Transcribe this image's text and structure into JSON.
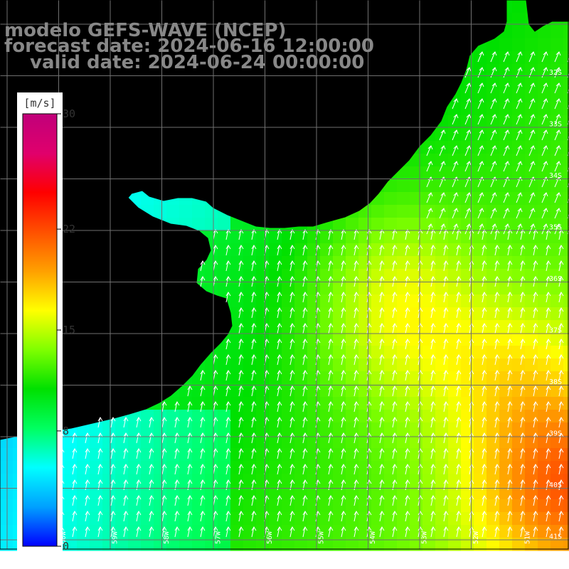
{
  "header": {
    "model": "modelo GEFS-WAVE (NCEP)",
    "forecast": "forecast date: 2024-06-16 12:00:00",
    "valid": "valid date: 2024-06-24 00:00:00"
  },
  "colorbar": {
    "unit": "[m/s]",
    "ticks": [
      {
        "label": "30",
        "value": 30
      },
      {
        "label": "22",
        "value": 22
      },
      {
        "label": "15",
        "value": 15
      },
      {
        "label": "8",
        "value": 8
      },
      {
        "label": "0",
        "value": 0
      }
    ],
    "min": 0,
    "max": 30,
    "gradient": [
      "#0000ff",
      "#00a0ff",
      "#00ffff",
      "#00ff60",
      "#00e000",
      "#80ff00",
      "#ffff00",
      "#ffa000",
      "#ff5000",
      "#ff0000",
      "#e0006c",
      "#c0007a"
    ]
  },
  "map": {
    "lon_labels": [
      "60W",
      "59W",
      "58W",
      "57W",
      "56W",
      "55W",
      "54W",
      "53W",
      "52W",
      "51W"
    ],
    "lat_labels": [
      "32S",
      "33S",
      "34S",
      "35S",
      "36S",
      "37S",
      "38S",
      "39S",
      "40S",
      "41S"
    ],
    "land_color": "#ffffff",
    "grid_color": "#707070",
    "arrow_color": "#ffffff",
    "wind_direction": "north-northeast"
  }
}
